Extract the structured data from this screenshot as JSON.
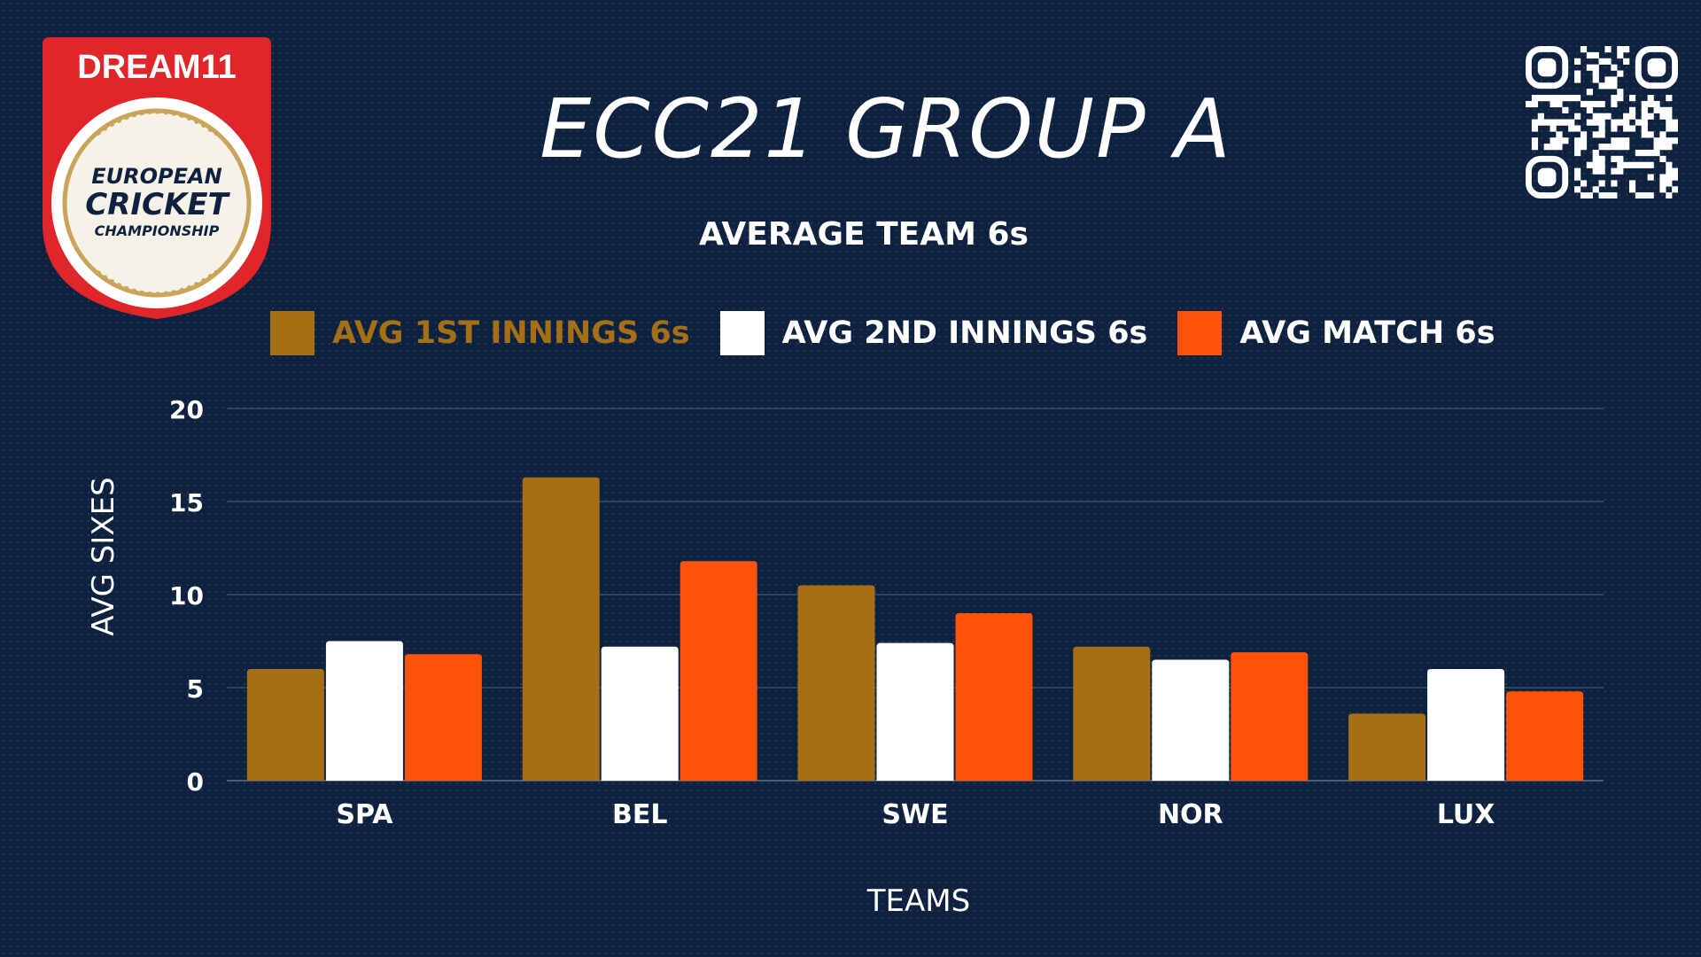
{
  "brand": {
    "logo_top_text": "DREAM11",
    "logo_line1": "EUROPEAN",
    "logo_line2": "CRICKET",
    "logo_line3": "CHAMPIONSHIP"
  },
  "colors": {
    "background": "#0e2240",
    "first_innings": "#a56f16",
    "second_innings": "#ffffff",
    "match": "#ff5209",
    "logo_red": "#e0262a",
    "logo_gold": "#c9a45a"
  },
  "chart_data": {
    "type": "bar",
    "title": "ECC21 GROUP A",
    "subtitle": "AVERAGE TEAM 6s",
    "xlabel": "TEAMS",
    "ylabel": "AVG SIXES",
    "ylim": [
      0,
      20
    ],
    "yticks": [
      "0",
      "5",
      "10",
      "15",
      "20"
    ],
    "categories": [
      "SPA",
      "BEL",
      "SWE",
      "NOR",
      "LUX"
    ],
    "grid": true,
    "legend_position": "top",
    "series": [
      {
        "name": "AVG 1ST INNINGS 6s",
        "color": "#a56f16",
        "values": [
          6,
          16.3,
          10.5,
          7.2,
          3.6
        ]
      },
      {
        "name": "AVG 2ND INNINGS 6s",
        "color": "#ffffff",
        "values": [
          7.5,
          7.2,
          7.4,
          6.5,
          6
        ]
      },
      {
        "name": "AVG MATCH 6s",
        "color": "#ff5209",
        "values": [
          6.8,
          11.8,
          9,
          6.9,
          4.8
        ]
      }
    ]
  }
}
